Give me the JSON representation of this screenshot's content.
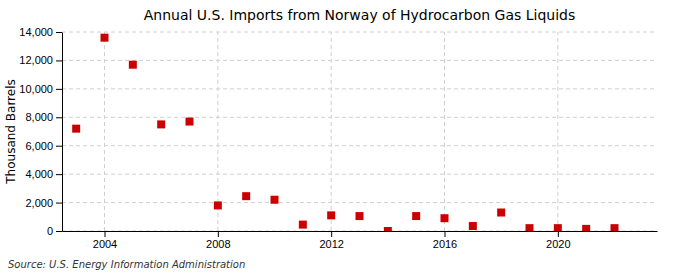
{
  "chart_data": {
    "type": "scatter",
    "title": "Annual U.S. Imports from Norway of Hydrocarbon Gas Liquids",
    "ylabel": "Thousand Barrels",
    "source": "Source: U.S. Energy Information Administration",
    "x": [
      2003,
      2004,
      2005,
      2006,
      2007,
      2008,
      2009,
      2010,
      2011,
      2012,
      2013,
      2014,
      2015,
      2016,
      2017,
      2018,
      2019,
      2020,
      2021,
      2022
    ],
    "values": [
      7200,
      13600,
      11700,
      7500,
      7700,
      1800,
      2450,
      2200,
      450,
      1100,
      1050,
      0,
      1050,
      900,
      350,
      1300,
      200,
      200,
      150,
      200
    ],
    "color": "#cc0000",
    "marker": "square",
    "xlim": [
      2002.5,
      2023.5
    ],
    "xticks": [
      2004,
      2008,
      2012,
      2016,
      2020
    ],
    "ylim": [
      0,
      14000
    ],
    "yticks": [
      0,
      {
        "value": 2000,
        "label": "2,000"
      },
      {
        "value": 4000,
        "label": "4,000"
      },
      {
        "value": 6000,
        "label": "6,000"
      },
      {
        "value": 8000,
        "label": "8,000"
      },
      {
        "value": 10000,
        "label": "10,000"
      },
      {
        "value": 12000,
        "label": "12,000"
      },
      {
        "value": 14000,
        "label": "14,000"
      }
    ],
    "grid": true
  }
}
